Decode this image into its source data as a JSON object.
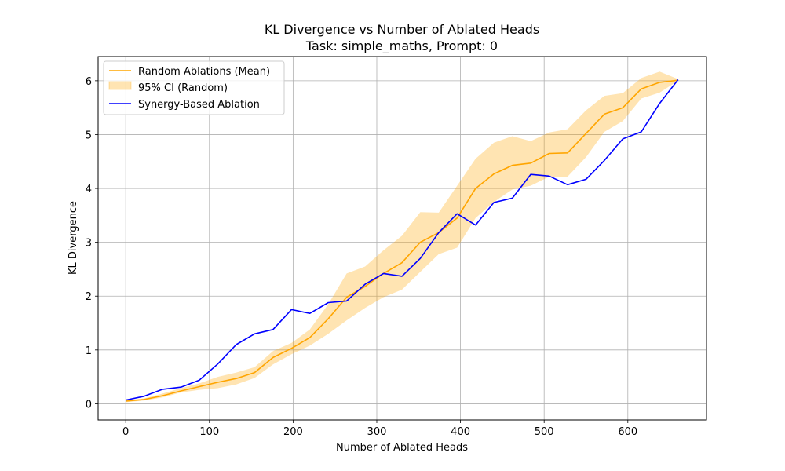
{
  "chart_data": {
    "type": "line",
    "title": "KL Divergence vs Number of Ablated Heads",
    "subtitle": "Task: simple_maths, Prompt: 0",
    "xlabel": "Number of Ablated Heads",
    "ylabel": "KL Divergence",
    "xlim": [
      -33,
      694
    ],
    "ylim": [
      -0.3,
      6.45
    ],
    "xticks": [
      0,
      100,
      200,
      300,
      400,
      500,
      600
    ],
    "yticks": [
      0,
      1,
      2,
      3,
      4,
      5,
      6
    ],
    "grid": true,
    "legend_position": "top-left",
    "x": [
      0,
      22,
      44,
      66,
      88,
      110,
      132,
      154,
      176,
      198,
      220,
      242,
      264,
      286,
      308,
      330,
      352,
      374,
      396,
      418,
      440,
      462,
      484,
      506,
      528,
      550,
      572,
      594,
      616,
      638,
      660
    ],
    "series": [
      {
        "name": "Random Ablations (Mean)",
        "color": "#ffa500",
        "kind": "line",
        "values": [
          0.05,
          0.08,
          0.15,
          0.24,
          0.32,
          0.4,
          0.47,
          0.58,
          0.86,
          1.03,
          1.23,
          1.58,
          1.98,
          2.18,
          2.42,
          2.62,
          3.0,
          3.18,
          3.45,
          4.0,
          4.27,
          4.43,
          4.47,
          4.65,
          4.66,
          5.02,
          5.38,
          5.5,
          5.85,
          5.97,
          6.01
        ]
      },
      {
        "name": "95% CI (Random)",
        "color": "#ffa500",
        "kind": "band",
        "lower": [
          0.03,
          0.06,
          0.12,
          0.21,
          0.26,
          0.29,
          0.36,
          0.48,
          0.73,
          0.92,
          1.08,
          1.3,
          1.55,
          1.78,
          1.98,
          2.12,
          2.45,
          2.78,
          2.9,
          3.45,
          3.75,
          3.98,
          4.05,
          4.22,
          4.22,
          4.58,
          5.05,
          5.25,
          5.67,
          5.78,
          6.0
        ],
        "upper": [
          0.07,
          0.1,
          0.19,
          0.29,
          0.38,
          0.5,
          0.58,
          0.68,
          0.98,
          1.13,
          1.38,
          1.85,
          2.42,
          2.55,
          2.85,
          3.12,
          3.56,
          3.55,
          4.05,
          4.55,
          4.85,
          4.97,
          4.88,
          5.04,
          5.1,
          5.45,
          5.72,
          5.77,
          6.05,
          6.17,
          6.03
        ]
      },
      {
        "name": "Synergy-Based Ablation",
        "color": "#0000ff",
        "kind": "line",
        "values": [
          0.07,
          0.14,
          0.27,
          0.31,
          0.44,
          0.74,
          1.1,
          1.3,
          1.38,
          1.75,
          1.68,
          1.88,
          1.91,
          2.22,
          2.42,
          2.37,
          2.7,
          3.18,
          3.53,
          3.32,
          3.74,
          3.82,
          4.26,
          4.23,
          4.07,
          4.17,
          4.52,
          4.92,
          5.05,
          5.58,
          6.02
        ]
      }
    ]
  }
}
